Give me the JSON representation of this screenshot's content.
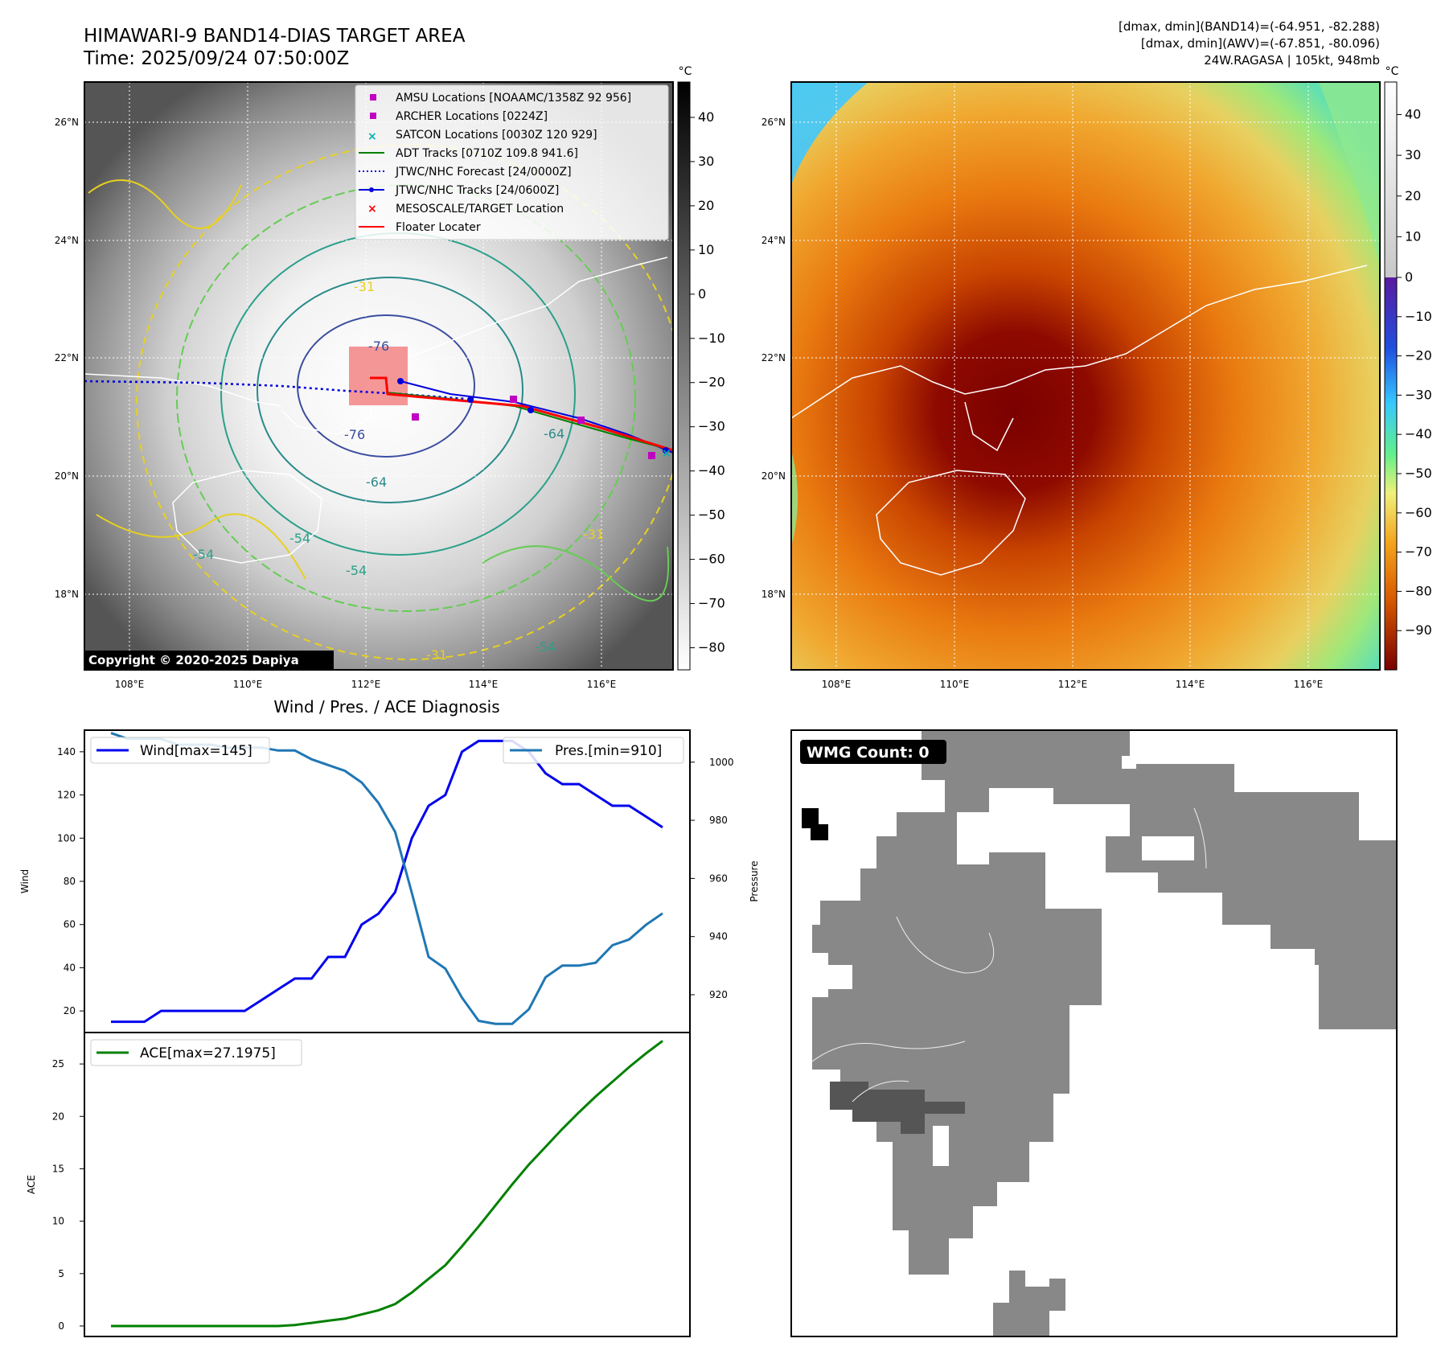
{
  "header": {
    "title": "HIMAWARI-9 BAND14-DIAS TARGET AREA",
    "time": "Time: 2025/09/24 07:50:00Z",
    "info_band14": "[dmax, dmin](BAND14)=(-64.951, -82.288)",
    "info_awv": "[dmax, dmin](AWV)=(-67.851, -80.096)",
    "info_storm": "24W.RAGASA | 105kt, 948mb"
  },
  "map_ir": {
    "lon_ticks": [
      "108°E",
      "110°E",
      "112°E",
      "114°E",
      "116°E"
    ],
    "lat_ticks": [
      "26°N",
      "24°N",
      "22°N",
      "20°N",
      "18°N"
    ],
    "colorbar_unit": "°C",
    "colorbar_ticks": [
      "40",
      "30",
      "20",
      "10",
      "0",
      "−10",
      "−20",
      "−30",
      "−40",
      "−50",
      "−60",
      "−70",
      "−80"
    ],
    "contour_labels": [
      "-76",
      "-76",
      "-64",
      "-64",
      "-54",
      "-54",
      "-54",
      "-54",
      "-31",
      "-31",
      "-31"
    ],
    "copyright": "Copyright © 2020-2025 Dapiya",
    "legend": [
      {
        "label": "AMSU Locations [NOAAMC/1358Z 92 956]",
        "color": "#c000c0",
        "marker": "square"
      },
      {
        "label": "ARCHER Locations [0224Z]",
        "color": "#c000c0",
        "marker": "square"
      },
      {
        "label": "SATCON Locations [0030Z 120 929]",
        "color": "#00b0b0",
        "marker": "x"
      },
      {
        "label": "ADT Tracks [0710Z 109.8 941.6]",
        "color": "#008000",
        "marker": "line"
      },
      {
        "label": "JTWC/NHC Forecast [24/0000Z]",
        "color": "#0000dd",
        "marker": "dotted"
      },
      {
        "label": "JTWC/NHC Tracks [24/0600Z]",
        "color": "#0000dd",
        "marker": "line-dot"
      },
      {
        "label": "MESOSCALE/TARGET Location",
        "color": "#ff0000",
        "marker": "x"
      },
      {
        "label": "Floater Locater",
        "color": "#ff0000",
        "marker": "line"
      }
    ]
  },
  "map_awv": {
    "lon_ticks": [
      "108°E",
      "110°E",
      "112°E",
      "114°E",
      "116°E"
    ],
    "lat_ticks": [
      "26°N",
      "24°N",
      "22°N",
      "20°N",
      "18°N"
    ],
    "colorbar_unit": "°C",
    "colorbar_ticks": [
      "40",
      "30",
      "20",
      "10",
      "0",
      "−10",
      "−20",
      "−30",
      "−40",
      "−50",
      "−60",
      "−70",
      "−80",
      "−90"
    ]
  },
  "diag": {
    "title": "Wind / Pres. / ACE Diagnosis",
    "wind_ylabel": "Wind",
    "pres_ylabel": "Pressure",
    "ace_ylabel": "ACE",
    "wind_legend": "Wind[max=145]",
    "pres_legend": "Pres.[min=910]",
    "ace_legend": "ACE[max=27.1975]",
    "wind_ticks": [
      "20",
      "40",
      "60",
      "80",
      "100",
      "120",
      "140"
    ],
    "pres_ticks": [
      "920",
      "940",
      "960",
      "980",
      "1000"
    ],
    "ace_ticks": [
      "0",
      "5",
      "10",
      "15",
      "20",
      "25"
    ]
  },
  "wmg": {
    "label": "WMG Count: 0"
  },
  "chart_data": [
    {
      "type": "line",
      "title": "Wind / Pres. / ACE Diagnosis",
      "xlabel": "",
      "ylabel": "Wind",
      "ylim": [
        10,
        150
      ],
      "y2label": "Pressure",
      "y2lim": [
        907,
        1011
      ],
      "series": [
        {
          "name": "Wind[max=145]",
          "axis": "left",
          "color": "#0000ee",
          "values": [
            15,
            15,
            15,
            20,
            20,
            20,
            20,
            20,
            20,
            25,
            30,
            35,
            35,
            45,
            45,
            60,
            65,
            75,
            100,
            115,
            120,
            140,
            145,
            145,
            145,
            140,
            130,
            125,
            125,
            120,
            115,
            115,
            110,
            105
          ]
        },
        {
          "name": "Pres.[min=910]",
          "axis": "right",
          "color": "#1f77b4",
          "values": [
            1010,
            1008,
            1008,
            1008,
            1006,
            1006,
            1006,
            1005,
            1005,
            1005,
            1004,
            1004,
            1001,
            999,
            997,
            993,
            986,
            976,
            955,
            933,
            929,
            919,
            911,
            910,
            910,
            915,
            926,
            930,
            930,
            931,
            937,
            939,
            944,
            948
          ]
        }
      ]
    },
    {
      "type": "line",
      "xlabel": "",
      "ylabel": "ACE",
      "ylim": [
        -1,
        28
      ],
      "series": [
        {
          "name": "ACE[max=27.1975]",
          "color": "#008000",
          "values": [
            0,
            0,
            0,
            0,
            0,
            0,
            0,
            0,
            0,
            0,
            0,
            0.1,
            0.3,
            0.5,
            0.7,
            1.1,
            1.5,
            2.1,
            3.2,
            4.5,
            5.8,
            7.6,
            9.5,
            11.5,
            13.5,
            15.4,
            17.1,
            18.8,
            20.4,
            21.9,
            23.3,
            24.7,
            26.0,
            27.2
          ]
        }
      ]
    }
  ]
}
